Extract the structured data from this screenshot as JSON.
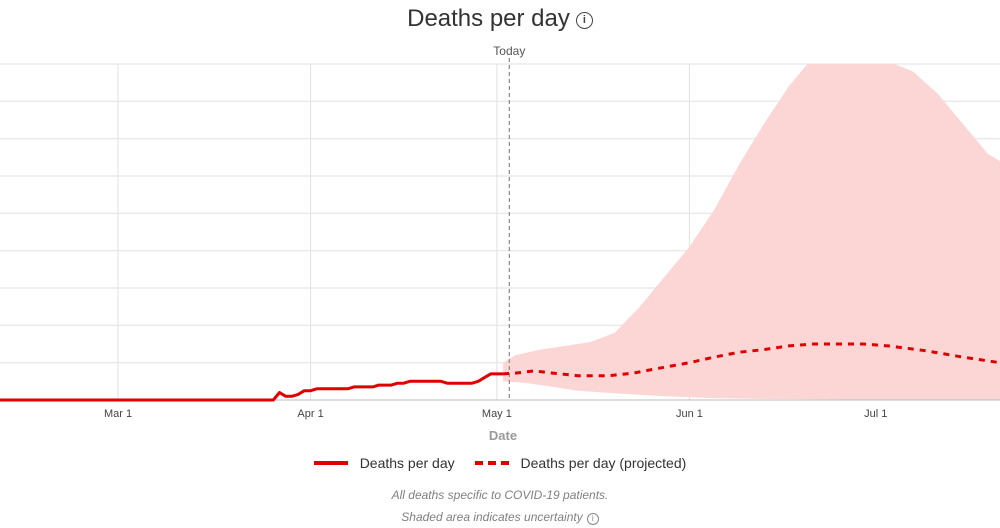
{
  "chart_data": {
    "type": "line",
    "title": "Deaths per day",
    "xlabel": "Date",
    "ylabel": "",
    "x_tick_labels": [
      "Mar 1",
      "Apr 1",
      "May 1",
      "Jun 1",
      "Jul 1"
    ],
    "x_tick_days": [
      0,
      31,
      61,
      92,
      122
    ],
    "x_range_days": [
      -19,
      142
    ],
    "ylim": [
      0,
      9
    ],
    "y_grid_count": 9,
    "grid": true,
    "today_label": "Today",
    "today_day": 63,
    "legend_position": "bottom",
    "legend": [
      {
        "label": "Deaths per day",
        "style": "solid"
      },
      {
        "label": "Deaths per day (projected)",
        "style": "dashed"
      }
    ],
    "series": [
      {
        "name": "Deaths per day",
        "style": "solid",
        "color": "#e00000",
        "points": [
          [
            -19,
            0
          ],
          [
            25,
            0
          ],
          [
            26,
            0.2
          ],
          [
            27,
            0.1
          ],
          [
            28,
            0.1
          ],
          [
            29,
            0.15
          ],
          [
            30,
            0.25
          ],
          [
            31,
            0.25
          ],
          [
            32,
            0.3
          ],
          [
            37,
            0.3
          ],
          [
            38,
            0.35
          ],
          [
            41,
            0.35
          ],
          [
            42,
            0.4
          ],
          [
            44,
            0.4
          ],
          [
            45,
            0.45
          ],
          [
            46,
            0.45
          ],
          [
            47,
            0.5
          ],
          [
            52,
            0.5
          ],
          [
            53,
            0.45
          ],
          [
            57,
            0.45
          ],
          [
            58,
            0.5
          ],
          [
            59,
            0.6
          ],
          [
            60,
            0.7
          ],
          [
            62,
            0.7
          ]
        ]
      },
      {
        "name": "Deaths per day (projected)",
        "style": "dashed",
        "color": "#e00000",
        "points": [
          [
            62,
            0.7
          ],
          [
            64,
            0.72
          ],
          [
            67,
            0.78
          ],
          [
            70,
            0.72
          ],
          [
            74,
            0.65
          ],
          [
            79,
            0.65
          ],
          [
            83,
            0.72
          ],
          [
            87,
            0.85
          ],
          [
            92,
            1.0
          ],
          [
            96,
            1.15
          ],
          [
            100,
            1.28
          ],
          [
            104,
            1.35
          ],
          [
            108,
            1.45
          ],
          [
            112,
            1.5
          ],
          [
            120,
            1.5
          ],
          [
            124,
            1.45
          ],
          [
            130,
            1.32
          ],
          [
            136,
            1.15
          ],
          [
            142,
            1.0
          ]
        ]
      }
    ],
    "uncertainty_band": {
      "color": "#fcd5d5",
      "upper": [
        [
          62,
          1.0
        ],
        [
          64,
          1.2
        ],
        [
          68,
          1.35
        ],
        [
          72,
          1.45
        ],
        [
          76,
          1.55
        ],
        [
          80,
          1.8
        ],
        [
          84,
          2.5
        ],
        [
          88,
          3.3
        ],
        [
          92,
          4.1
        ],
        [
          96,
          5.1
        ],
        [
          100,
          6.3
        ],
        [
          104,
          7.4
        ],
        [
          108,
          8.4
        ],
        [
          111,
          9.0
        ],
        [
          125,
          9.0
        ],
        [
          128,
          8.8
        ],
        [
          132,
          8.2
        ],
        [
          136,
          7.4
        ],
        [
          140,
          6.6
        ],
        [
          142,
          6.4
        ]
      ],
      "lower": [
        [
          62,
          0.5
        ],
        [
          66,
          0.45
        ],
        [
          70,
          0.35
        ],
        [
          74,
          0.25
        ],
        [
          80,
          0.18
        ],
        [
          88,
          0.1
        ],
        [
          96,
          0.05
        ],
        [
          104,
          0.03
        ],
        [
          112,
          0.02
        ],
        [
          120,
          0.01
        ],
        [
          142,
          0.0
        ]
      ]
    }
  },
  "notes": {
    "line1": "All deaths specific to COVID-19 patients.",
    "line2": "Shaded area indicates uncertainty"
  },
  "icons": {
    "title_info": "info-icon",
    "uncertainty_info": "info-icon"
  }
}
